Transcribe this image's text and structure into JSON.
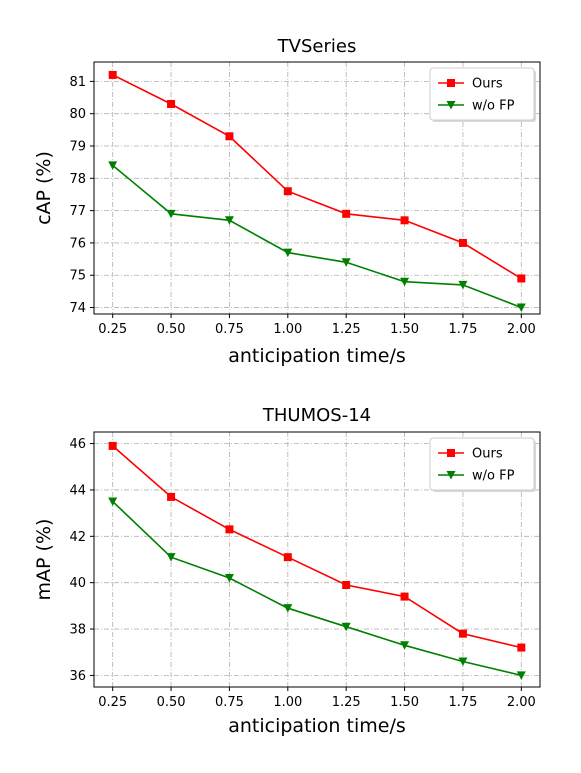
{
  "chart_data": [
    {
      "type": "line",
      "title": "TVSeries",
      "xlabel": "anticipation time/s",
      "ylabel": "cAP (%)",
      "x": [
        0.25,
        0.5,
        0.75,
        1.0,
        1.25,
        1.5,
        1.75,
        2.0
      ],
      "x_tick_labels": [
        "0.25",
        "0.50",
        "0.75",
        "1.00",
        "1.25",
        "1.50",
        "1.75",
        "2.00"
      ],
      "xlim": [
        0.17,
        2.08
      ],
      "ylim": [
        73.8,
        81.6
      ],
      "y_ticks": [
        74,
        75,
        76,
        77,
        78,
        79,
        80,
        81
      ],
      "y_tick_labels": [
        "74",
        "75",
        "76",
        "77",
        "78",
        "79",
        "80",
        "81"
      ],
      "grid": true,
      "legend_position": "top-right",
      "series": [
        {
          "name": "Ours",
          "color": "#ff0000",
          "marker": "square",
          "values": [
            81.2,
            80.3,
            79.3,
            77.6,
            76.9,
            76.7,
            76.0,
            74.9
          ]
        },
        {
          "name": "w/o FP",
          "color": "#008000",
          "marker": "triangle-down",
          "values": [
            78.4,
            76.9,
            76.7,
            75.7,
            75.4,
            74.8,
            74.7,
            74.0
          ]
        }
      ]
    },
    {
      "type": "line",
      "title": "THUMOS-14",
      "xlabel": "anticipation time/s",
      "ylabel": "mAP (%)",
      "x": [
        0.25,
        0.5,
        0.75,
        1.0,
        1.25,
        1.5,
        1.75,
        2.0
      ],
      "x_tick_labels": [
        "0.25",
        "0.50",
        "0.75",
        "1.00",
        "1.25",
        "1.50",
        "1.75",
        "2.00"
      ],
      "xlim": [
        0.17,
        2.08
      ],
      "ylim": [
        35.5,
        46.5
      ],
      "y_ticks": [
        36,
        38,
        40,
        42,
        44,
        46
      ],
      "y_tick_labels": [
        "36",
        "38",
        "40",
        "42",
        "44",
        "46"
      ],
      "grid": true,
      "legend_position": "top-right",
      "series": [
        {
          "name": "Ours",
          "color": "#ff0000",
          "marker": "square",
          "values": [
            45.9,
            43.7,
            42.3,
            41.1,
            39.9,
            39.4,
            37.8,
            37.2
          ]
        },
        {
          "name": "w/o FP",
          "color": "#008000",
          "marker": "triangle-down",
          "values": [
            43.5,
            41.1,
            40.2,
            38.9,
            38.1,
            37.3,
            36.6,
            36.0
          ]
        }
      ]
    }
  ]
}
